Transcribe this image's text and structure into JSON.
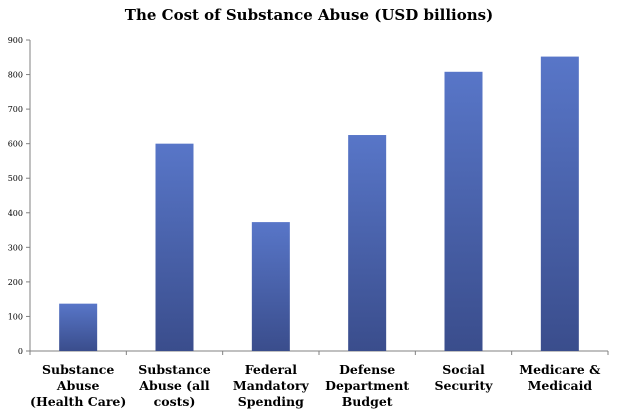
{
  "chart_data": {
    "type": "bar",
    "title": "The Cost of Substance Abuse (USD billions)",
    "xlabel": "",
    "ylabel": "",
    "ylim": [
      0,
      900
    ],
    "yticks": [
      0,
      100,
      200,
      300,
      400,
      500,
      600,
      700,
      800,
      900
    ],
    "categories": [
      "Substance Abuse (Health Care)",
      "Substance Abuse (all costs)",
      "Federal Mandatory Spending",
      "Defense Department Budget",
      "Social Security",
      "Medicare & Medicaid"
    ],
    "category_label_lines": [
      [
        "Substance",
        "Abuse",
        "(Health Care)"
      ],
      [
        "Substance",
        "Abuse (all",
        "costs)"
      ],
      [
        "Federal",
        "Mandatory",
        "Spending"
      ],
      [
        "Defense",
        "Department",
        "Budget"
      ],
      [
        "Social",
        "Security"
      ],
      [
        "Medicare &",
        "Medicaid"
      ]
    ],
    "values": [
      137,
      600,
      373,
      625,
      808,
      852
    ],
    "grid": false,
    "legend": "none",
    "bar_color_top": "#5876C8",
    "bar_color_bottom": "#3A4D8C",
    "axis_color": "#808080"
  }
}
